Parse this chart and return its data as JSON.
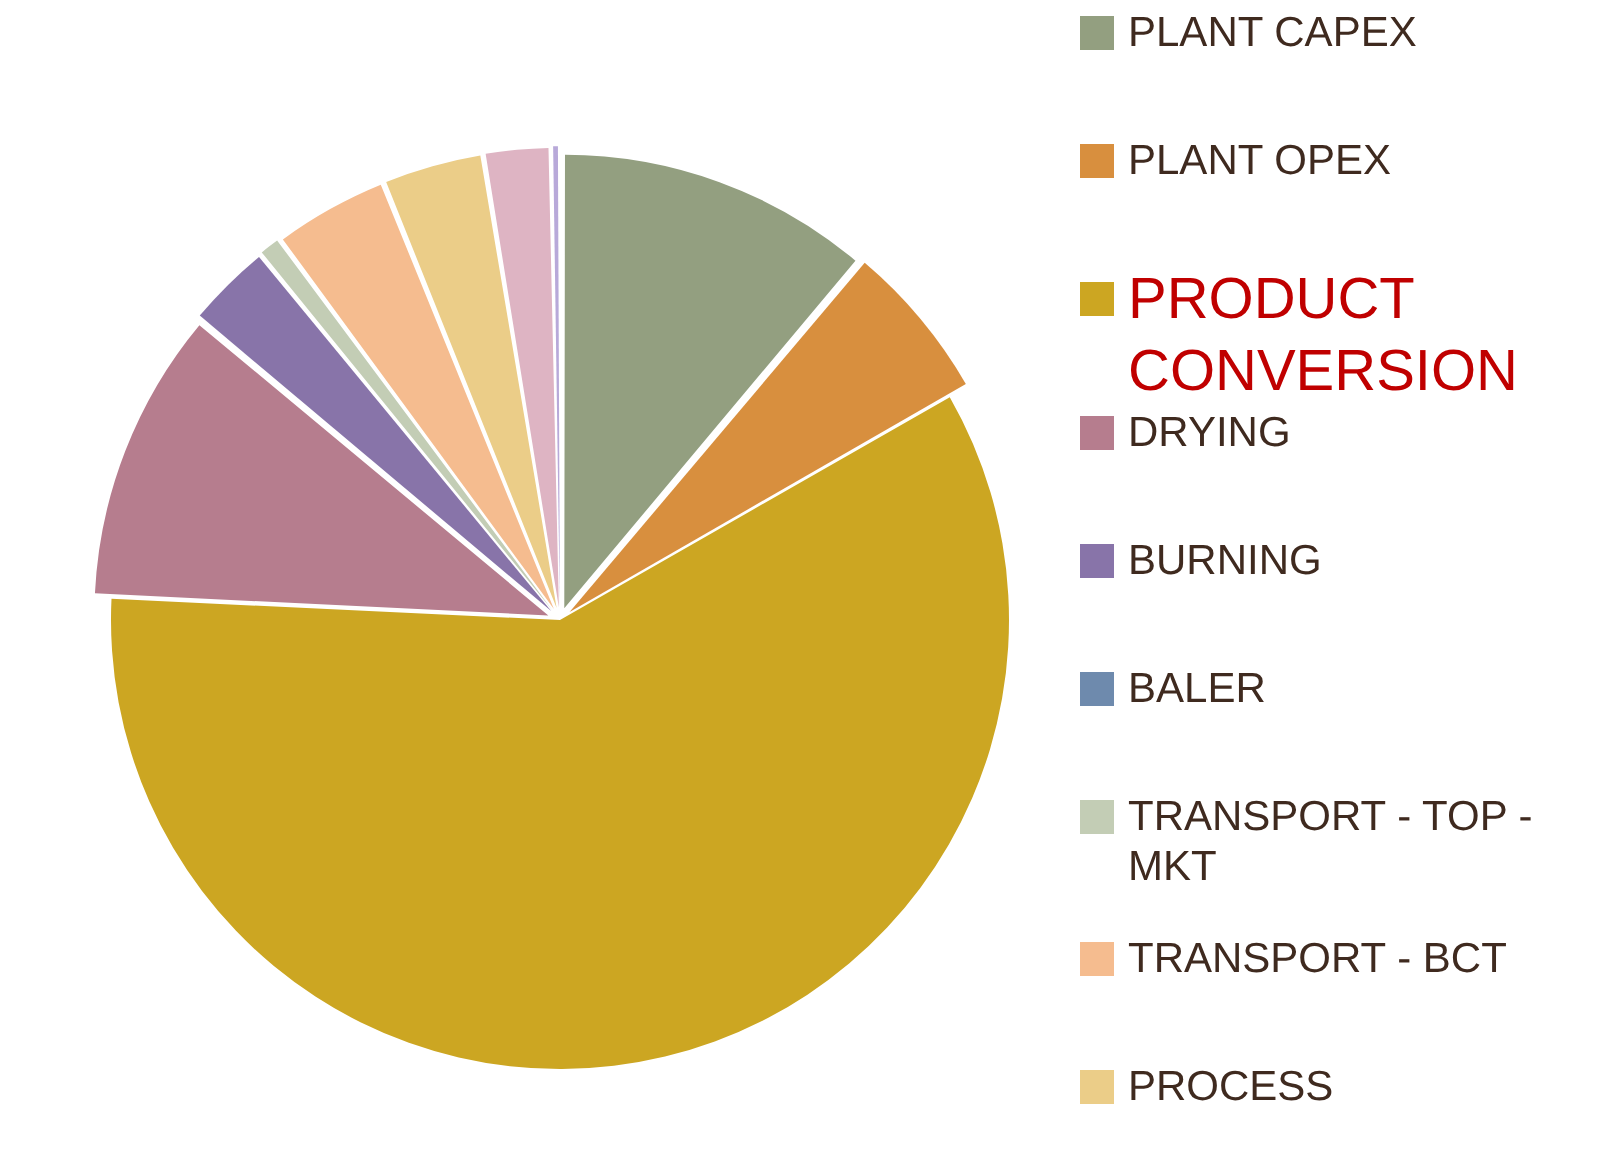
{
  "chart_data": {
    "type": "pie",
    "categories": [
      "PLANT CAPEX",
      "PLANT OPEX",
      "PRODUCT CONVERSION",
      "DRYING",
      "BURNING",
      "BALER",
      "TRANSPORT - TOP - MKT",
      "TRANSPORT - BCT",
      "PROCESS",
      null,
      null
    ],
    "values": [
      11.1,
      5.6,
      58.9,
      10.3,
      3.0,
      0.0,
      0.8,
      4.0,
      3.5,
      2.3,
      0.3
    ],
    "colors": [
      "#939f80",
      "#d88f3e",
      "#cca622",
      "#b67d8e",
      "#8874a9",
      "#6e8aad",
      "#c3cdb5",
      "#f5bc8f",
      "#ebcd88",
      "#deb4c3",
      "#b8a9d9"
    ],
    "legend": "right"
  }
}
